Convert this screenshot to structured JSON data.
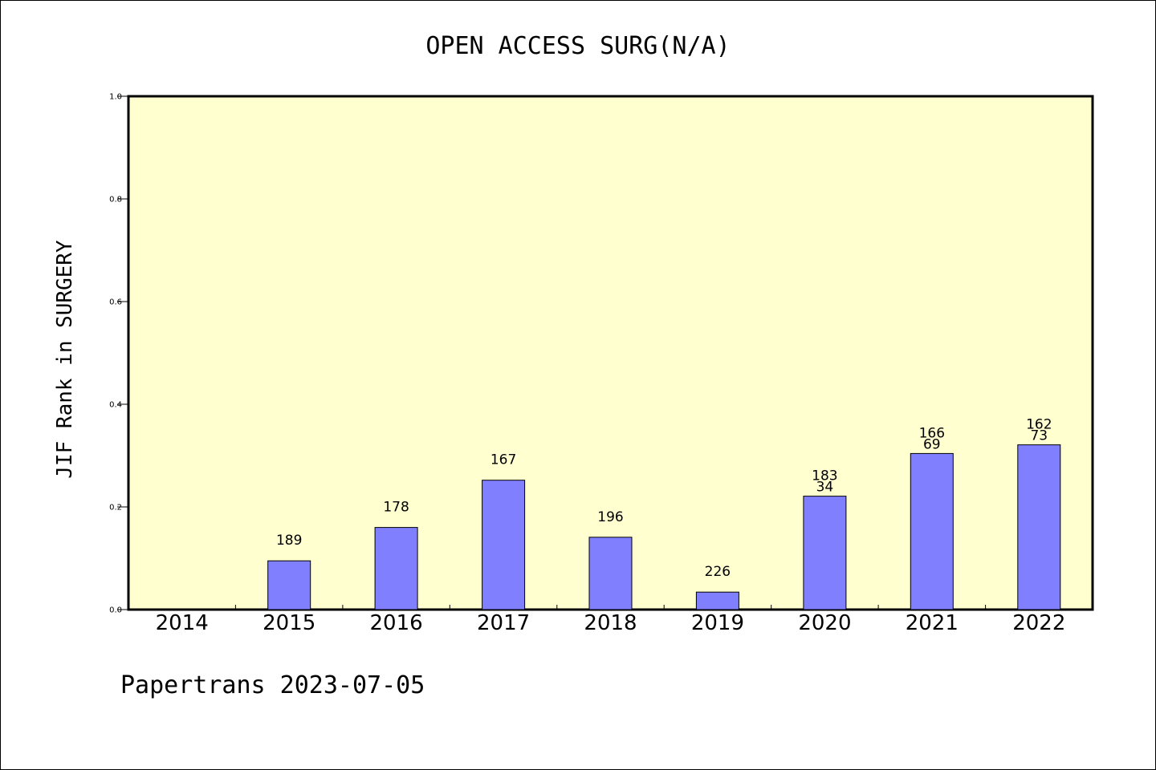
{
  "chart_data": {
    "type": "bar",
    "title": "OPEN ACCESS SURG(N/A)",
    "ylabel": "JIF Rank in SURGERY",
    "xlabel": "",
    "footer": "Papertrans 2023-07-05",
    "categories": [
      "2014",
      "2015",
      "2016",
      "2017",
      "2018",
      "2019",
      "2020",
      "2021",
      "2022"
    ],
    "values": [
      null,
      0.095,
      0.16,
      0.252,
      0.141,
      0.034,
      0.221,
      0.304,
      0.321
    ],
    "labels": [
      [],
      [
        "189"
      ],
      [
        "178"
      ],
      [
        "167"
      ],
      [
        "196"
      ],
      [
        "226"
      ],
      [
        "183",
        "34"
      ],
      [
        "166",
        "69"
      ],
      [
        "162",
        "73"
      ]
    ],
    "ylim": [
      0,
      1.0
    ],
    "yticks": [
      "0.0",
      "0.2",
      "0.4",
      "0.6",
      "0.8",
      "1.0"
    ],
    "grid": false,
    "colors": {
      "plot_bg": "#ffffd0",
      "bar": "#8080ff",
      "axis": "#000000"
    }
  }
}
